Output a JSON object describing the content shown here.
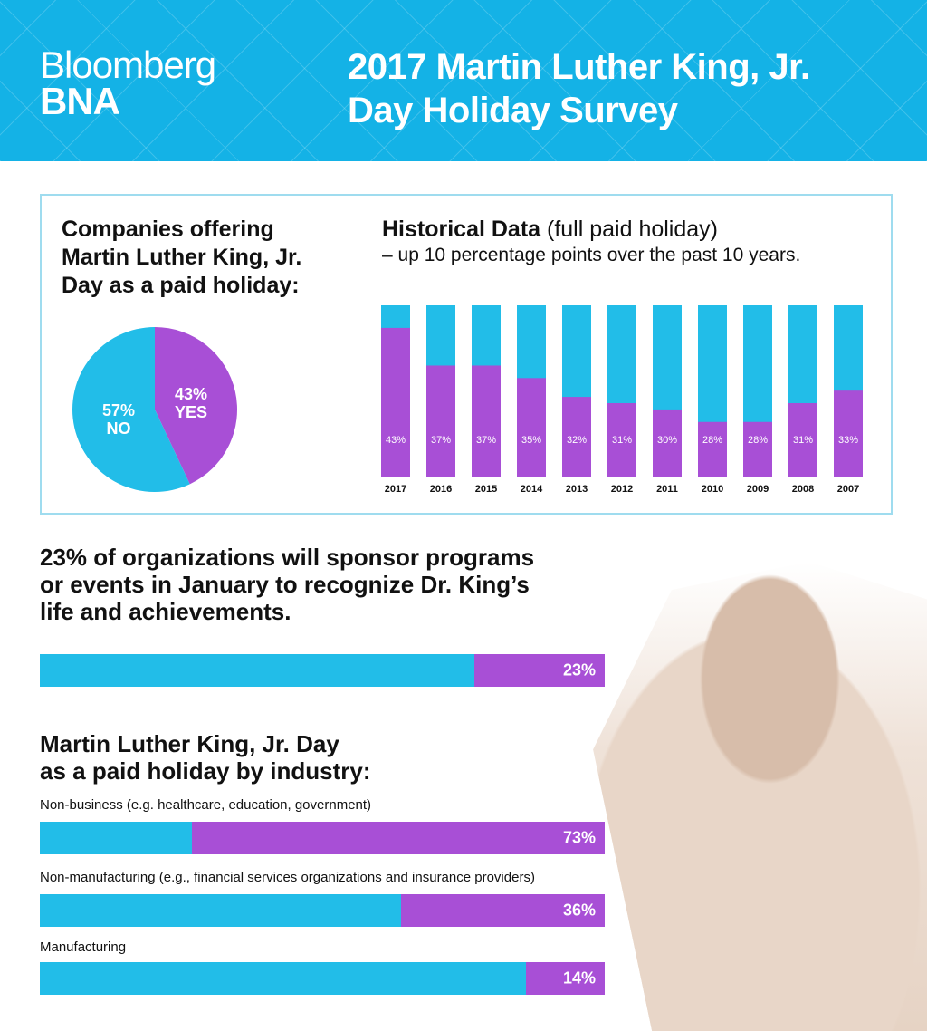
{
  "header": {
    "logo_line1": "Bloomberg",
    "logo_line2": "BNA",
    "title_line1": "2017 Martin Luther King, Jr.",
    "title_line2": "Day Holiday Survey"
  },
  "colors": {
    "header": "#14b2e6",
    "yes": "#a84fd6",
    "no": "#22bde8"
  },
  "pie_title": [
    "Companies offering",
    "Martin Luther King, Jr.",
    "Day as a paid holiday:"
  ],
  "hist_title": {
    "bold": "Historical Data",
    "rest": " (full paid holiday)",
    "sub": "– up 10 percentage points over the past 10 years."
  },
  "sponsor_title": [
    "23% of organizations will sponsor programs",
    "or events in January to recognize Dr. King’s",
    "life and achievements."
  ],
  "industry_title": [
    "Martin Luther King, Jr. Day",
    "as a paid holiday by industry:"
  ],
  "chart_data": [
    {
      "type": "pie",
      "title": "Companies offering Martin Luther King, Jr. Day as a paid holiday:",
      "slices": [
        {
          "label": "YES",
          "value": 43,
          "text": "43%"
        },
        {
          "label": "NO",
          "value": 57,
          "text": "57%"
        }
      ]
    },
    {
      "type": "bar",
      "title": "Historical Data (full paid holiday)",
      "categories": [
        "2017",
        "2016",
        "2015",
        "2014",
        "2013",
        "2012",
        "2011",
        "2010",
        "2009",
        "2008",
        "2007"
      ],
      "values": [
        43,
        37,
        37,
        35,
        32,
        31,
        30,
        28,
        28,
        31,
        33
      ],
      "labels": [
        "43%",
        "37%",
        "37%",
        "35%",
        "32%",
        "31%",
        "30%",
        "28%",
        "28%",
        "31%",
        "33%"
      ],
      "ylim": [
        19.3,
        46.6
      ]
    },
    {
      "type": "bar",
      "title": "Sponsor programs or events",
      "values": [
        23
      ],
      "labels": [
        "23%"
      ]
    },
    {
      "type": "bar",
      "title": "Martin Luther King, Jr. Day as a paid holiday by industry",
      "categories": [
        "Non-business (e.g. healthcare, education, government)",
        "Non-manufacturing (e.g., financial services organizations and insurance providers)",
        "Manufacturing"
      ],
      "values": [
        73,
        36,
        14
      ],
      "labels": [
        "73%",
        "36%",
        "14%"
      ]
    }
  ]
}
